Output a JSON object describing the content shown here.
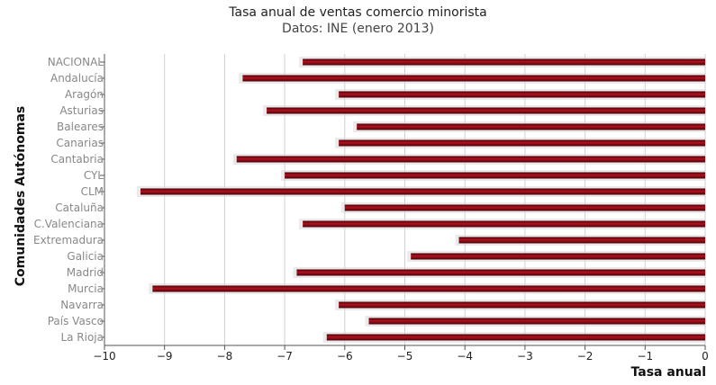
{
  "chart_data": {
    "type": "bar",
    "orientation": "horizontal",
    "title": "Tasa anual de ventas comercio minorista",
    "subtitle": "Datos: INE (enero 2013)",
    "xlabel": "Tasa anual",
    "ylabel": "Comunidades Autónomas",
    "xlim": [
      -10,
      0
    ],
    "xticks": [
      -10,
      -9,
      -8,
      -7,
      -6,
      -5,
      -4,
      -3,
      -2,
      -1,
      0
    ],
    "grid": true,
    "bar_color": "#8b0a1a",
    "categories": [
      "NACIONAL",
      "Andalucía",
      "Aragón",
      "Asturias",
      "Baleares",
      "Canarias",
      "Cantabria",
      "CYL",
      "CLM",
      "Cataluña",
      "C.Valenciana",
      "Extremadura",
      "Galicia",
      "Madrid",
      "Murcia",
      "Navarra",
      "País Vasco",
      "La Rioja"
    ],
    "values": [
      -6.7,
      -7.7,
      -6.1,
      -7.3,
      -5.8,
      -6.1,
      -7.8,
      -7.0,
      -9.4,
      -6.0,
      -6.7,
      -4.1,
      -4.9,
      -6.8,
      -9.2,
      -6.1,
      -5.6,
      -6.3
    ]
  }
}
